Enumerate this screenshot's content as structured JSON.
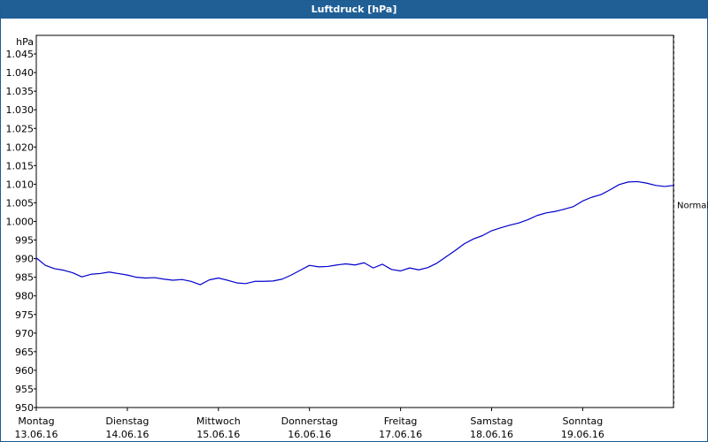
{
  "window": {
    "title": "Luftdruck [hPa]"
  },
  "chart_data": {
    "type": "line",
    "title": "Luftdruck [hPa]",
    "ylabel": "hPa",
    "xlabel": "",
    "ylim": [
      950,
      1050
    ],
    "yticks": [
      "950",
      "955",
      "960",
      "965",
      "970",
      "975",
      "980",
      "985",
      "990",
      "995",
      "1.000",
      "1.005",
      "1.010",
      "1.015",
      "1.020",
      "1.025",
      "1.030",
      "1.035",
      "1.040",
      "1.045"
    ],
    "xlim": [
      0,
      7
    ],
    "x_ticks": [
      {
        "day": "Montag",
        "date": "13.06.16"
      },
      {
        "day": "Dienstag",
        "date": "14.06.16"
      },
      {
        "day": "Mittwoch",
        "date": "15.06.16"
      },
      {
        "day": "Donnerstag",
        "date": "16.06.16"
      },
      {
        "day": "Freitag",
        "date": "17.06.16"
      },
      {
        "day": "Samstag",
        "date": "18.06.16"
      },
      {
        "day": "Sonntag",
        "date": "19.06.16"
      }
    ],
    "grid": true,
    "annotation": "Normal",
    "annotation_value": 1004.5,
    "line_color": "#0000cc",
    "series": [
      {
        "values": [
          [
            0.0,
            990.2
          ],
          [
            0.1,
            988.2
          ],
          [
            0.2,
            987.3
          ],
          [
            0.3,
            986.9
          ],
          [
            0.4,
            986.2
          ],
          [
            0.5,
            985.1
          ],
          [
            0.6,
            985.8
          ],
          [
            0.7,
            986.0
          ],
          [
            0.8,
            986.4
          ],
          [
            0.9,
            986.0
          ],
          [
            1.0,
            985.6
          ],
          [
            1.1,
            985.0
          ],
          [
            1.2,
            984.8
          ],
          [
            1.3,
            984.9
          ],
          [
            1.4,
            984.5
          ],
          [
            1.5,
            984.2
          ],
          [
            1.6,
            984.4
          ],
          [
            1.7,
            983.9
          ],
          [
            1.8,
            983.0
          ],
          [
            1.9,
            984.3
          ],
          [
            2.0,
            984.8
          ],
          [
            2.1,
            984.2
          ],
          [
            2.2,
            983.5
          ],
          [
            2.3,
            983.3
          ],
          [
            2.4,
            983.9
          ],
          [
            2.5,
            983.9
          ],
          [
            2.6,
            984.0
          ],
          [
            2.7,
            984.5
          ],
          [
            2.8,
            985.6
          ],
          [
            2.9,
            986.9
          ],
          [
            3.0,
            988.2
          ],
          [
            3.1,
            987.8
          ],
          [
            3.2,
            987.9
          ],
          [
            3.3,
            988.3
          ],
          [
            3.4,
            988.6
          ],
          [
            3.5,
            988.3
          ],
          [
            3.6,
            988.9
          ],
          [
            3.7,
            987.5
          ],
          [
            3.8,
            988.5
          ],
          [
            3.9,
            987.1
          ],
          [
            4.0,
            986.7
          ],
          [
            4.1,
            987.5
          ],
          [
            4.2,
            987.0
          ],
          [
            4.3,
            987.6
          ],
          [
            4.4,
            988.8
          ],
          [
            4.5,
            990.5
          ],
          [
            4.6,
            992.2
          ],
          [
            4.7,
            994.0
          ],
          [
            4.8,
            995.3
          ],
          [
            4.9,
            996.2
          ],
          [
            5.0,
            997.5
          ],
          [
            5.1,
            998.3
          ],
          [
            5.2,
            999.0
          ],
          [
            5.3,
            999.6
          ],
          [
            5.4,
            1000.5
          ],
          [
            5.5,
            1001.6
          ],
          [
            5.6,
            1002.3
          ],
          [
            5.7,
            1002.7
          ],
          [
            5.8,
            1003.3
          ],
          [
            5.9,
            1004.0
          ],
          [
            6.0,
            1005.5
          ],
          [
            6.1,
            1006.5
          ],
          [
            6.2,
            1007.2
          ],
          [
            6.3,
            1008.5
          ],
          [
            6.4,
            1009.9
          ],
          [
            6.5,
            1010.6
          ],
          [
            6.6,
            1010.7
          ],
          [
            6.7,
            1010.3
          ],
          [
            6.8,
            1009.7
          ],
          [
            6.9,
            1009.4
          ],
          [
            7.0,
            1009.7
          ]
        ]
      }
    ]
  }
}
